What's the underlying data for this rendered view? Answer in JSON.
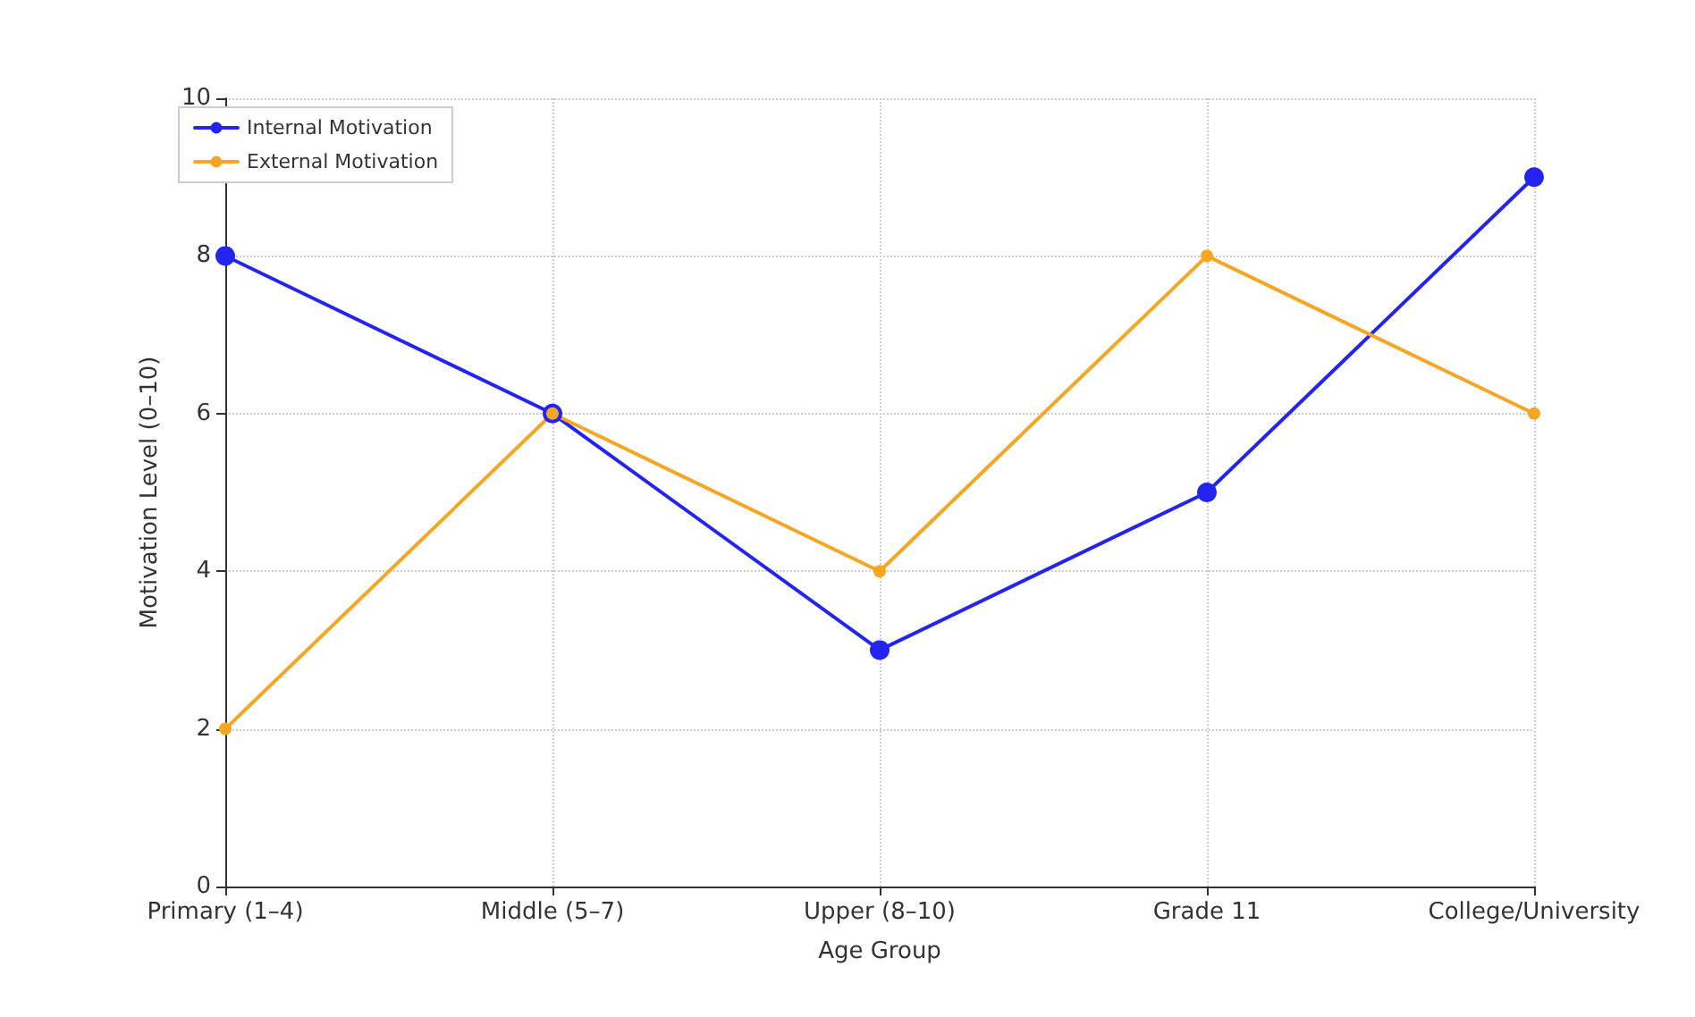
{
  "chart_data": {
    "type": "line",
    "xlabel": "Age Group",
    "ylabel": "Motivation Level (0–10)",
    "categories": [
      "Primary (1–4)",
      "Middle (5–7)",
      "Upper (8–10)",
      "Grade 11",
      "College/University"
    ],
    "series": [
      {
        "name": "Internal Motivation",
        "color": "#2424f0",
        "values": [
          8,
          6,
          3,
          5,
          9
        ]
      },
      {
        "name": "External Motivation",
        "color": "#f5a623",
        "values": [
          2,
          6,
          4,
          8,
          6
        ]
      }
    ],
    "ylim": [
      0,
      10
    ],
    "yticks": [
      0,
      2,
      4,
      6,
      8,
      10
    ],
    "grid": true,
    "legend": "top left",
    "marker": "circle",
    "line_style": "solid"
  }
}
